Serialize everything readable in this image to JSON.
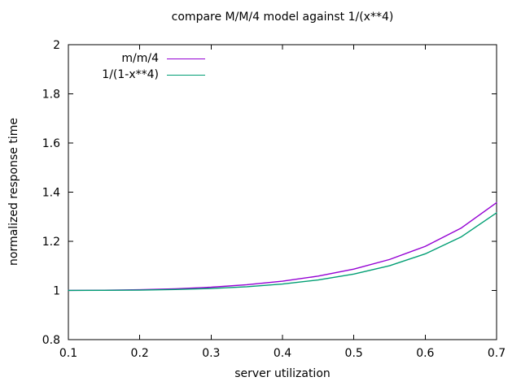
{
  "chart_data": {
    "type": "line",
    "title": "compare M/M/4 model against 1/(x**4)",
    "xlabel": "server utilization",
    "ylabel": "normalized response time",
    "xlim": [
      0.1,
      0.7
    ],
    "ylim": [
      0.8,
      2.0
    ],
    "grid": false,
    "legend_position": "inside-top-left",
    "axis_color": "#000000",
    "background_color": "#ffffff",
    "xticks": [
      {
        "value": 0.1,
        "label": "0.1"
      },
      {
        "value": 0.2,
        "label": "0.2"
      },
      {
        "value": 0.3,
        "label": "0.3"
      },
      {
        "value": 0.4,
        "label": "0.4"
      },
      {
        "value": 0.5,
        "label": "0.5"
      },
      {
        "value": 0.6,
        "label": "0.6"
      },
      {
        "value": 0.7,
        "label": "0.7"
      }
    ],
    "yticks": [
      {
        "value": 0.8,
        "label": "0.8"
      },
      {
        "value": 1.0,
        "label": "1"
      },
      {
        "value": 1.2,
        "label": "1.2"
      },
      {
        "value": 1.4,
        "label": "1.4"
      },
      {
        "value": 1.6,
        "label": "1.6"
      },
      {
        "value": 1.8,
        "label": "1.8"
      },
      {
        "value": 2.0,
        "label": "2"
      }
    ],
    "x": [
      0.1,
      0.15,
      0.2,
      0.25,
      0.3,
      0.35,
      0.4,
      0.45,
      0.5,
      0.55,
      0.6,
      0.65,
      0.7
    ],
    "series": [
      {
        "name": "m/m/4",
        "color": "#9400d3",
        "values": [
          1.0002,
          1.001,
          1.003,
          1.0068,
          1.0132,
          1.0232,
          1.0378,
          1.0584,
          1.087,
          1.126,
          1.1794,
          1.2532,
          1.3572
        ]
      },
      {
        "name": "1/(1-x**4)",
        "color": "#009e73",
        "values": [
          1.0001,
          1.0005,
          1.0016,
          1.0039,
          1.0082,
          1.0152,
          1.0263,
          1.0427,
          1.0667,
          1.1007,
          1.1489,
          1.2173,
          1.316
        ]
      }
    ]
  }
}
